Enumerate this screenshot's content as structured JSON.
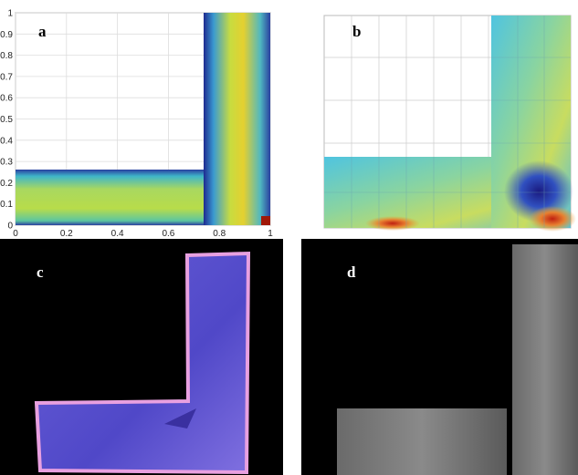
{
  "panels": [
    {
      "label": "a",
      "xlim": [
        0,
        1
      ],
      "ylim": [
        0,
        1
      ],
      "xticks": [
        0,
        0.2,
        0.4,
        0.6,
        0.8,
        1
      ],
      "yticks": [
        0,
        0.1,
        0.2,
        0.3,
        0.4,
        0.5,
        0.6,
        0.7,
        0.8,
        0.9,
        1
      ]
    },
    {
      "label": "b"
    },
    {
      "label": "c"
    },
    {
      "label": "d"
    }
  ]
}
